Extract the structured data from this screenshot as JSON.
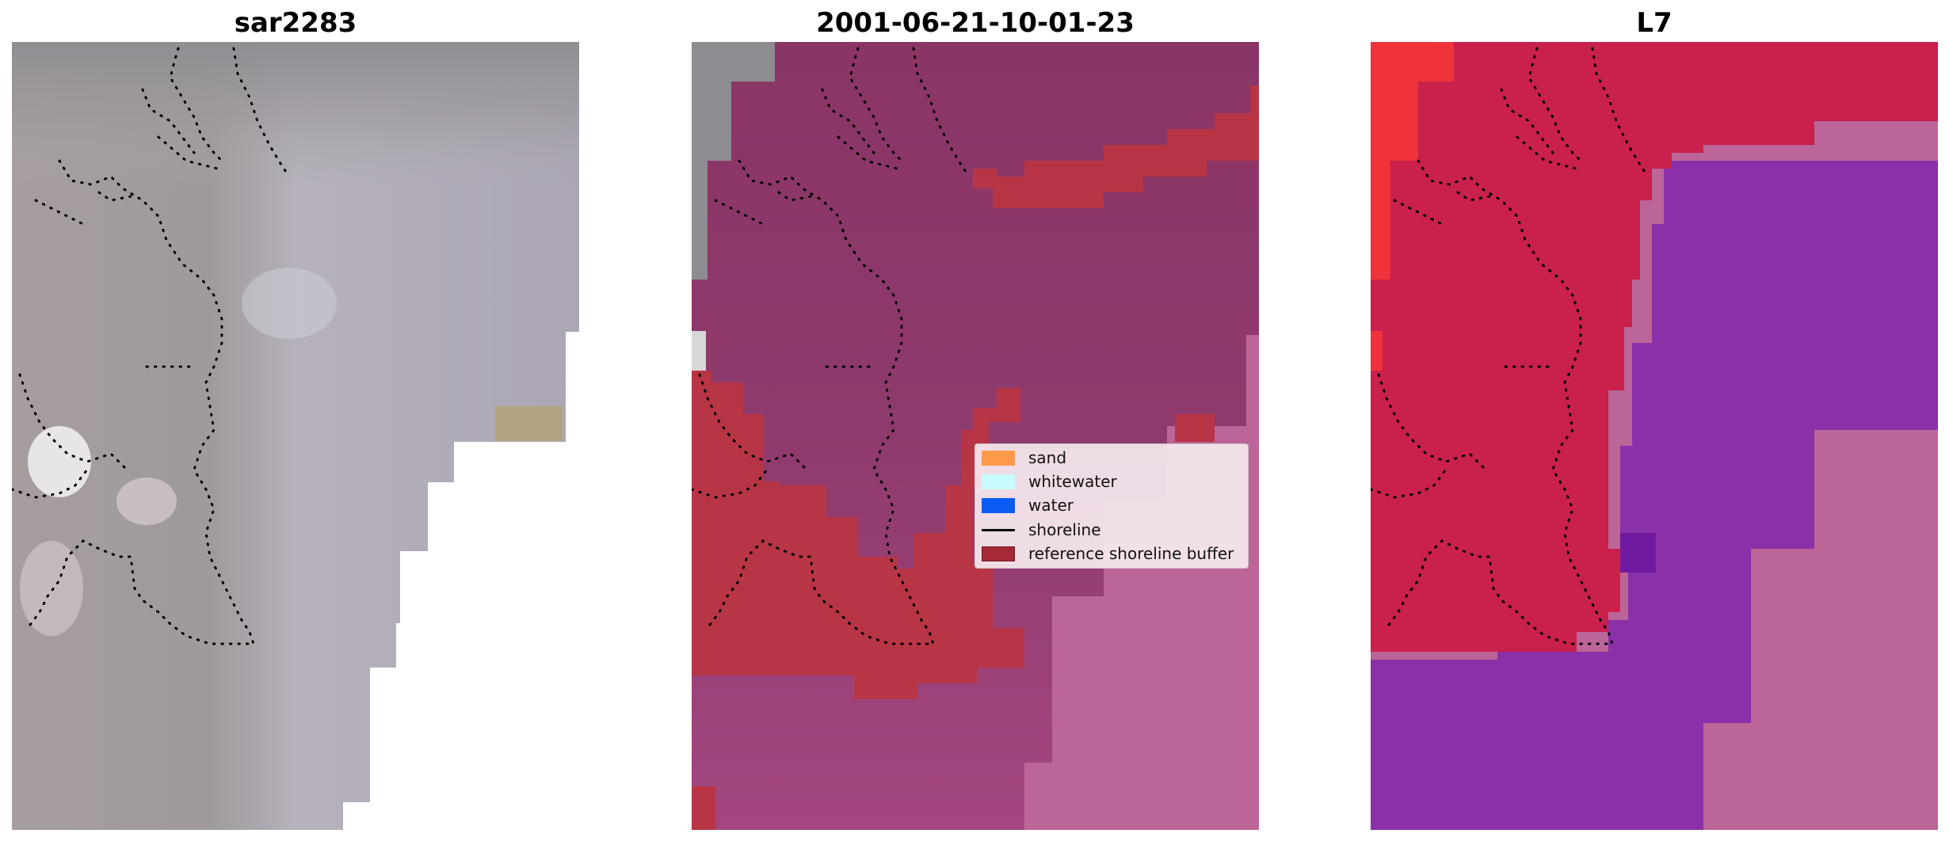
{
  "panels": [
    {
      "title": "sar2283"
    },
    {
      "title": "2001-06-21-10-01-23"
    },
    {
      "title": "L7"
    }
  ],
  "legend": {
    "entries": [
      {
        "label": "sand",
        "color": "#ff9a4a",
        "kind": "patch"
      },
      {
        "label": "whitewater",
        "color": "#c8fbfb",
        "kind": "patch"
      },
      {
        "label": "water",
        "color": "#0a5cf5",
        "kind": "patch"
      },
      {
        "label": "shoreline",
        "color": "#000000",
        "kind": "line"
      },
      {
        "label": "reference shoreline buffer",
        "color": "#a52a35",
        "kind": "patch"
      }
    ]
  },
  "colors": {
    "rgb_gray": "#ada6b3",
    "rgb_dark": "#9a929a",
    "class_water": "#8f3a6c",
    "class_water_light": "#a44781",
    "buffer": "#b83546",
    "l7_land": "#c9204c",
    "l7_water": "#8a30a8",
    "l7_shallow": "#bb6598",
    "shoreline_dots": "#000000"
  }
}
